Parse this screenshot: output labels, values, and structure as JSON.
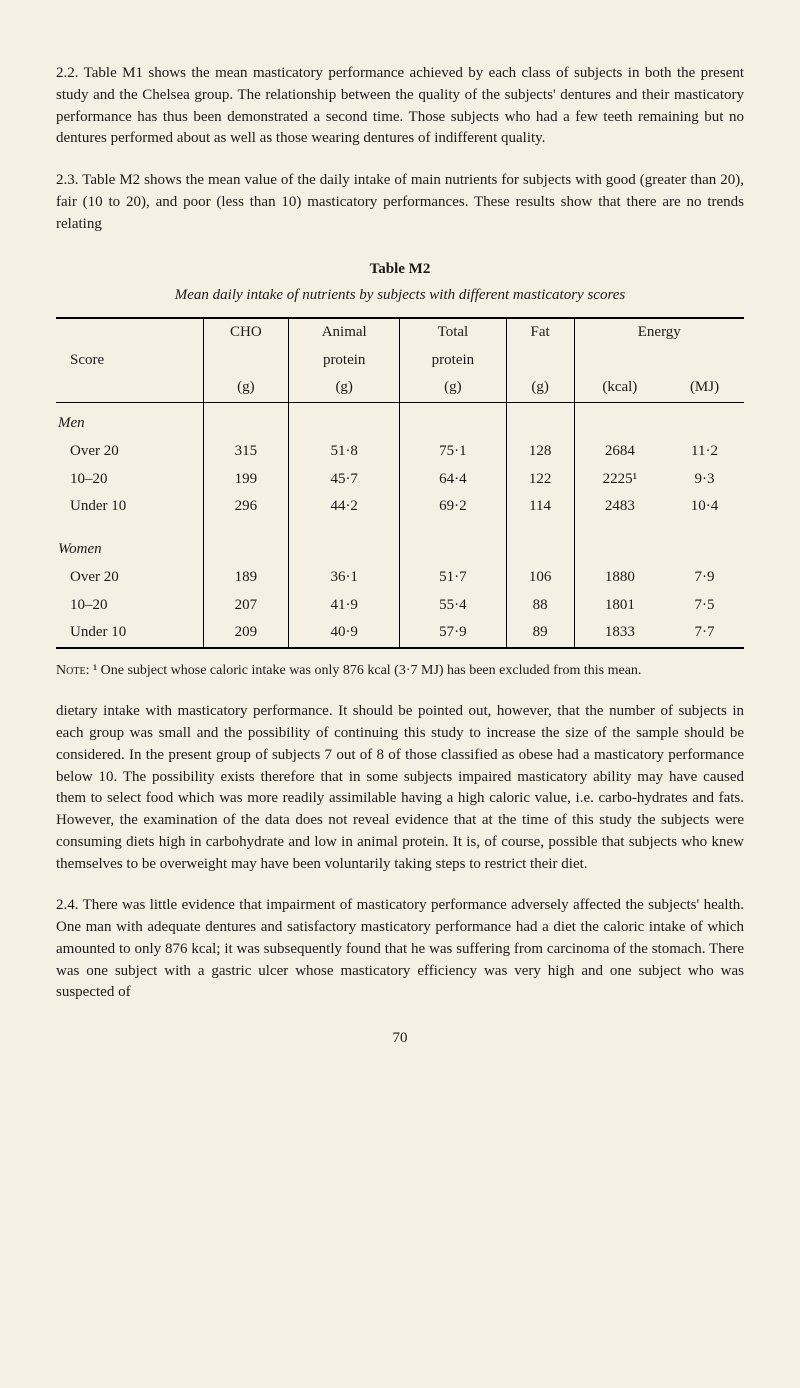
{
  "para1": "2.2. Table M1 shows the mean masticatory performance achieved by each class of subjects in both the present study and the Chelsea group. The relationship between the quality of the subjects' dentures and their masticatory performance has thus been demonstrated a second time. Those subjects who had a few teeth remaining but no dentures performed about as well as those wearing dentures of indifferent quality.",
  "para2": "2.3. Table M2 shows the mean value of the daily intake of main nutrients for subjects with good (greater than 20), fair (10 to 20), and poor (less than 10) masticatory performances. These results show that there are no trends relating",
  "table": {
    "label": "Table M2",
    "caption": "Mean daily intake of nutrients by subjects with different masticatory scores",
    "headers": {
      "score": "Score",
      "cho_top": "CHO",
      "cho_bot": "(g)",
      "ap_top": "Animal",
      "ap_mid": "protein",
      "ap_bot": "(g)",
      "tp_top": "Total",
      "tp_mid": "protein",
      "tp_bot": "(g)",
      "fat_top": "Fat",
      "fat_bot": "(g)",
      "energy": "Energy",
      "kcal": "(kcal)",
      "mj": "(MJ)"
    },
    "groups": {
      "men": "Men",
      "women": "Women"
    },
    "rows": {
      "m_over20": {
        "score": "Over 20",
        "cho": "315",
        "ap": "51·8",
        "tp": "75·1",
        "fat": "128",
        "kcal": "2684",
        "mj": "11·2"
      },
      "m_1020": {
        "score": "10–20",
        "cho": "199",
        "ap": "45·7",
        "tp": "64·4",
        "fat": "122",
        "kcal": "2225¹",
        "mj": "9·3"
      },
      "m_under10": {
        "score": "Under 10",
        "cho": "296",
        "ap": "44·2",
        "tp": "69·2",
        "fat": "114",
        "kcal": "2483",
        "mj": "10·4"
      },
      "w_over20": {
        "score": "Over 20",
        "cho": "189",
        "ap": "36·1",
        "tp": "51·7",
        "fat": "106",
        "kcal": "1880",
        "mj": "7·9"
      },
      "w_1020": {
        "score": "10–20",
        "cho": "207",
        "ap": "41·9",
        "tp": "55·4",
        "fat": "88",
        "kcal": "1801",
        "mj": "7·5"
      },
      "w_under10": {
        "score": "Under 10",
        "cho": "209",
        "ap": "40·9",
        "tp": "57·9",
        "fat": "89",
        "kcal": "1833",
        "mj": "7·7"
      }
    }
  },
  "note_label": "Note",
  "note_text": ": ¹ One subject whose caloric intake was only 876 kcal (3·7 MJ) has been excluded from this mean.",
  "para3": "dietary intake with masticatory performance. It should be pointed out, however, that the number of subjects in each group was small and the possibility of continuing this study to increase the size of the sample should be considered. In the present group of subjects 7 out of 8 of those classified as obese had a masticatory performance below 10. The possibility exists therefore that in some subjects impaired masticatory ability may have caused them to select food which was more readily assimilable having a high caloric value, i.e. carbo-hydrates and fats. However, the examination of the data does not reveal evidence that at the time of this study the subjects were consuming diets high in carbohydrate and low in animal protein. It is, of course, possible that subjects who knew themselves to be overweight may have been voluntarily taking steps to restrict their diet.",
  "para4": "2.4. There was little evidence that impairment of masticatory performance adversely affected the subjects' health. One man with adequate dentures and satisfactory masticatory performance had a diet the caloric intake of which amounted to only 876 kcal; it was subsequently found that he was suffering from carcinoma of the stomach. There was one subject with a gastric ulcer whose masticatory efficiency was very high and one subject who was suspected of",
  "page_number": "70"
}
